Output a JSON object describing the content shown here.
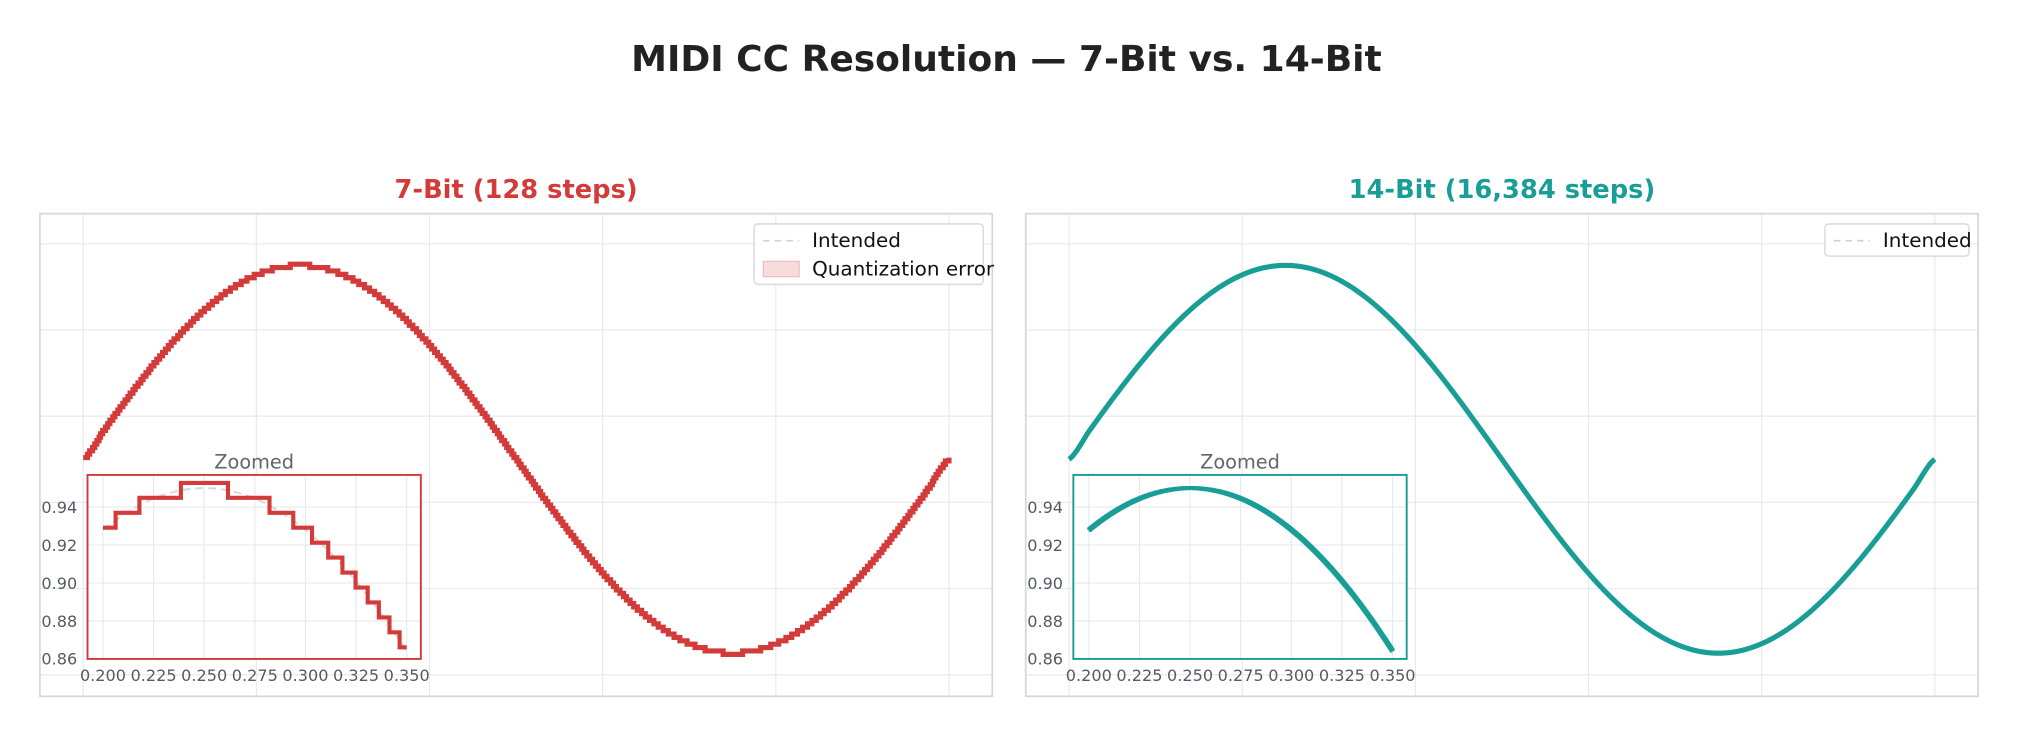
{
  "title": "MIDI CC Resolution — 7-Bit vs. 14-Bit",
  "chart_data": [
    {
      "type": "line",
      "title": "7-Bit  (128 steps)",
      "color": "#d33b3b",
      "levels": 127,
      "legend": {
        "position": "upper-right",
        "entries": [
          "Intended",
          "Quantization error"
        ]
      },
      "grid": true,
      "xlim": [
        -0.05,
        1.05
      ],
      "ylim": [
        -0.05,
        1.07
      ],
      "inset": {
        "label": "Zoomed",
        "xlim": [
          0.1925,
          0.3575
        ],
        "ylim": [
          0.86,
          0.957
        ],
        "xticks": [
          "0.200",
          "0.225",
          "0.250",
          "0.275",
          "0.300",
          "0.325",
          "0.350"
        ],
        "yticks": [
          "0.86",
          "0.88",
          "0.90",
          "0.92",
          "0.94"
        ]
      }
    },
    {
      "type": "line",
      "title": "14-Bit  (16,384 steps)",
      "color": "#189e96",
      "levels": 16383,
      "legend": {
        "position": "upper-right",
        "entries": [
          "Intended"
        ]
      },
      "grid": true,
      "xlim": [
        -0.05,
        1.05
      ],
      "ylim": [
        -0.05,
        1.07
      ],
      "inset": {
        "label": "Zoomed",
        "xlim": [
          0.1925,
          0.3575
        ],
        "ylim": [
          0.86,
          0.957
        ],
        "xticks": [
          "0.200",
          "0.225",
          "0.250",
          "0.275",
          "0.300",
          "0.325",
          "0.350"
        ],
        "yticks": [
          "0.86",
          "0.88",
          "0.90",
          "0.92",
          "0.94"
        ]
      }
    }
  ],
  "intended": {
    "x_step": 0.025,
    "y": [
      0.5,
      0.5704,
      0.6391,
      0.7043,
      0.7645,
      0.8182,
      0.8641,
      0.901,
      0.928,
      0.9445,
      0.95,
      0.9445,
      0.928,
      0.901,
      0.8641,
      0.8182,
      0.7645,
      0.7043,
      0.6391,
      0.5704,
      0.5,
      0.4296,
      0.3609,
      0.2957,
      0.2355,
      0.1818,
      0.1359,
      0.099,
      0.072,
      0.0555,
      0.05,
      0.0555,
      0.072,
      0.099,
      0.1359,
      0.1818,
      0.2355,
      0.2957,
      0.3609,
      0.4296,
      0.5
    ]
  }
}
